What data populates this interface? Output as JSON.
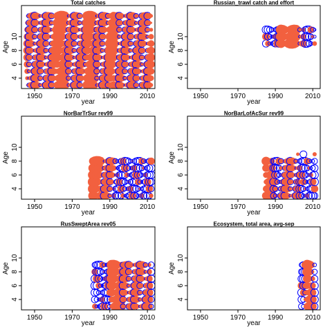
{
  "chart_data": {
    "type": "scatter",
    "colors": {
      "residual_positive": "#f2603f",
      "residual_negative": "#0000ff",
      "frame": "#000000"
    },
    "panels": [
      {
        "title": "Total catches",
        "xlabel": "year",
        "ylabel": "Age",
        "xlim": [
          1943,
          2014
        ],
        "ylim": [
          2.5,
          14.5
        ],
        "xticks": [
          1950,
          1970,
          1990,
          2010
        ],
        "yticks": [
          4,
          6,
          8,
          10
        ],
        "years": [
          1946,
          2012
        ],
        "ages": [
          3,
          13
        ],
        "extra_ages": [],
        "negative_years": [],
        "positive_years": [
          [
            1962,
            1966
          ],
          [
            1978,
            1982
          ],
          [
            1990,
            1992
          ]
        ]
      },
      {
        "title": "Russian_trawl catch and effort",
        "xlabel": "year",
        "ylabel": "Age",
        "xlim": [
          1943,
          2014
        ],
        "ylim": [
          2.5,
          14.5
        ],
        "xticks": [
          1950,
          1970,
          1990,
          2010
        ],
        "yticks": [
          4,
          6,
          8,
          10
        ],
        "years": [
          1985,
          2011
        ],
        "ages": [
          9,
          11
        ],
        "extra_ages": [],
        "negative_years": [
          [
            1985,
            1992
          ],
          [
            2007,
            2011
          ]
        ],
        "positive_years": [
          [
            1993,
            2001
          ]
        ]
      },
      {
        "title": "NorBarTrSur rev99",
        "xlabel": "year",
        "ylabel": "Age",
        "xlim": [
          1943,
          2014
        ],
        "ylim": [
          2.5,
          14.5
        ],
        "xticks": [
          1950,
          1970,
          1990,
          2010
        ],
        "yticks": [
          4,
          6,
          8,
          10
        ],
        "years": [
          1981,
          2012
        ],
        "ages": [
          3,
          8
        ],
        "extra_ages": [],
        "negative_years": [
          [
            1993,
            2012
          ]
        ],
        "positive_years": [
          [
            1981,
            1985
          ]
        ]
      },
      {
        "title": "NorBarLofAcSur rev99",
        "xlabel": "year",
        "ylabel": "Age",
        "xlim": [
          1943,
          2014
        ],
        "ylim": [
          2.5,
          14.5
        ],
        "xticks": [
          1950,
          1970,
          1990,
          2010
        ],
        "yticks": [
          4,
          6,
          8,
          10
        ],
        "years": [
          1985,
          2011
        ],
        "ages": [
          3,
          8
        ],
        "extra_ages": [
          [
            2002,
            9
          ],
          [
            2005,
            9
          ],
          [
            2011,
            9
          ]
        ],
        "negative_years": [
          [
            1989,
            1993
          ],
          [
            2003,
            2011
          ]
        ],
        "positive_years": [
          [
            1985,
            1988
          ]
        ]
      },
      {
        "title": "RusSweptArea rev05",
        "xlabel": "year",
        "ylabel": "Age",
        "xlim": [
          1943,
          2014
        ],
        "ylim": [
          2.5,
          14.5
        ],
        "xticks": [
          1950,
          1970,
          1990,
          2010
        ],
        "yticks": [
          4,
          6,
          8,
          10
        ],
        "years": [
          1982,
          2012
        ],
        "ages": [
          3,
          9
        ],
        "extra_ages": [],
        "negative_years": [
          [
            1982,
            1990
          ]
        ],
        "positive_years": [
          [
            1991,
            1996
          ]
        ]
      },
      {
        "title": "Ecosystem, total area, avg-sep",
        "xlabel": "year",
        "ylabel": "Age",
        "xlim": [
          1943,
          2014
        ],
        "ylim": [
          2.5,
          14.5
        ],
        "xticks": [
          1950,
          1970,
          1990,
          2010
        ],
        "yticks": [
          4,
          6,
          8,
          10
        ],
        "years": [
          2004,
          2011
        ],
        "ages": [
          3,
          9
        ],
        "extra_ages": [],
        "negative_years": [
          [
            2004,
            2006
          ]
        ],
        "positive_years": [
          [
            2007,
            2009
          ]
        ]
      }
    ]
  }
}
